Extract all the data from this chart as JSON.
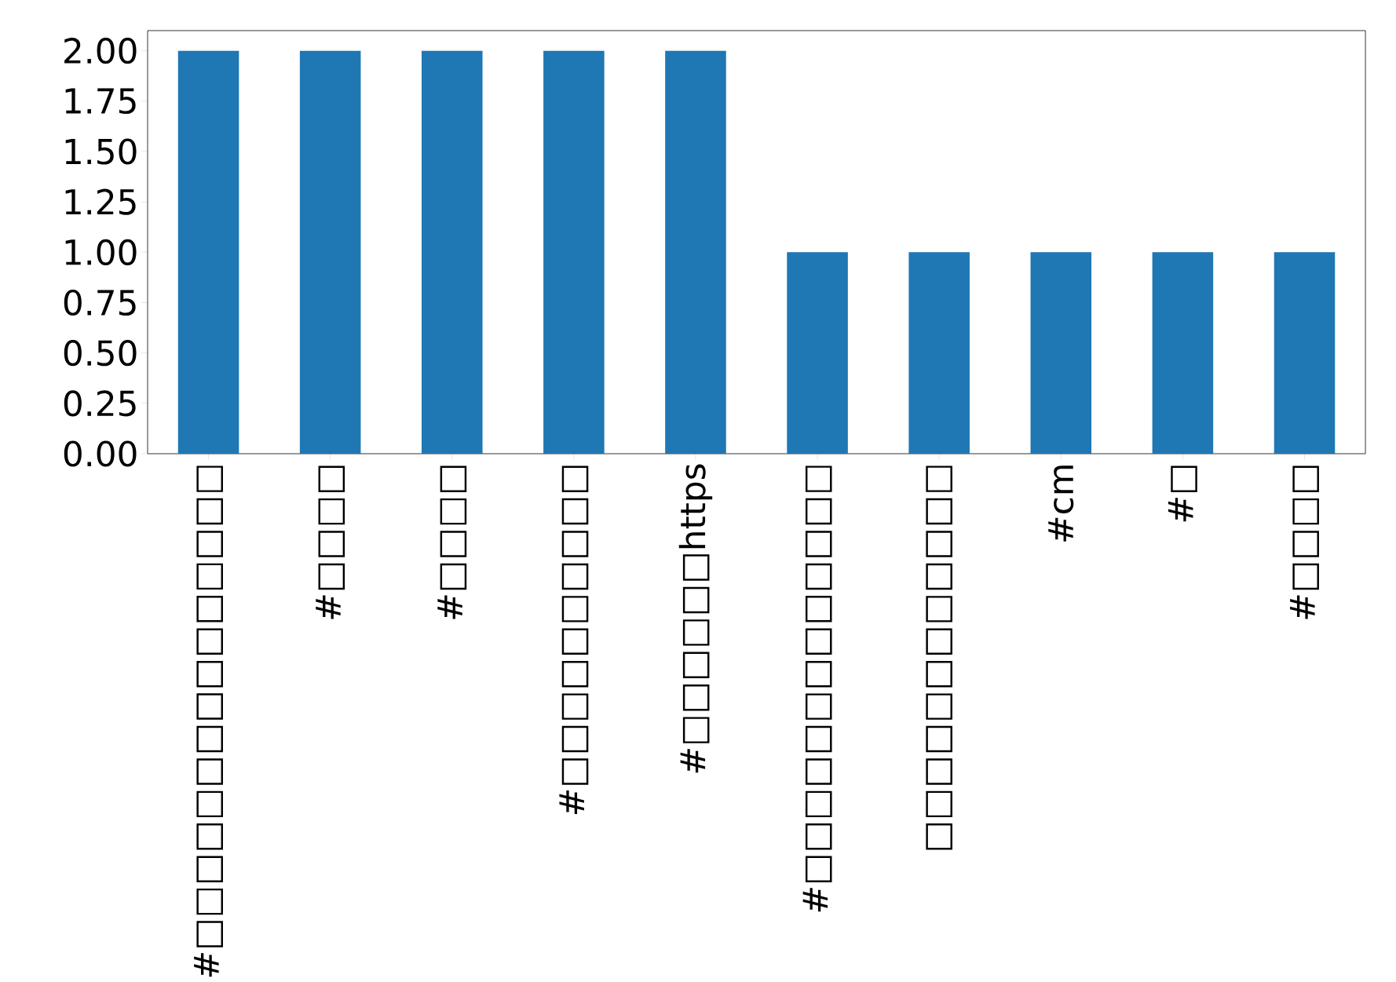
{
  "chart_data": {
    "type": "bar",
    "categories": [
      "#□□□□□□□□□□□□□□□",
      "#□□□□",
      "#□□□□",
      "#□□□□□□□□□□",
      "#□□□□□□https",
      "#□□□□□□□□□□□□□",
      "□□□□□□□□□□□□",
      "#cm",
      "#□",
      "#□□□□"
    ],
    "values": [
      2,
      2,
      2,
      2,
      2,
      1,
      1,
      1,
      1,
      1
    ],
    "color": "#1f77b4",
    "ylim": [
      0,
      2.1
    ],
    "yticks": [
      {
        "value": 0,
        "label": "0.00"
      },
      {
        "value": 0.25,
        "label": "0.25"
      },
      {
        "value": 0.5,
        "label": "0.50"
      },
      {
        "value": 0.75,
        "label": "0.75"
      },
      {
        "value": 1,
        "label": "1.00"
      },
      {
        "value": 1.25,
        "label": "1.25"
      },
      {
        "value": 1.5,
        "label": "1.50"
      },
      {
        "value": 1.75,
        "label": "1.75"
      },
      {
        "value": 2,
        "label": "2.00"
      }
    ],
    "grid": false
  }
}
